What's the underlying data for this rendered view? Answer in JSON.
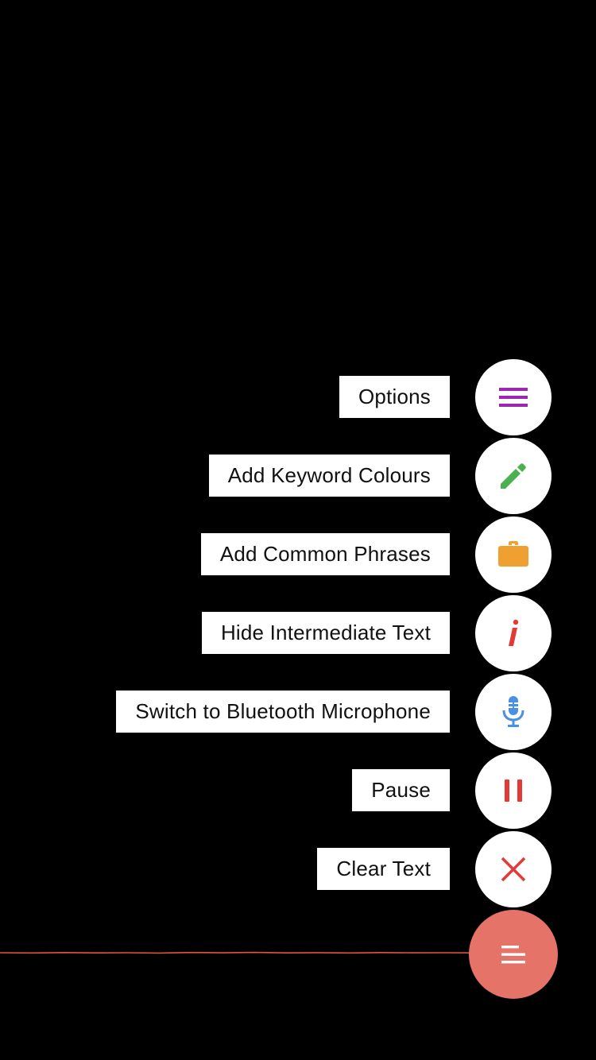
{
  "colors": {
    "background": "#000000",
    "label_bg": "#ffffff",
    "fab_bg": "#ffffff",
    "main_fab": "#e57368",
    "waveform": "#e0533f",
    "options_icon": "#9c27b0",
    "keyword_icon": "#4caf50",
    "phrases_icon": "#f0a030",
    "intermediate_icon": "#e53935",
    "mic_icon": "#4a90e2",
    "pause_icon": "#e53935",
    "clear_icon": "#e53935"
  },
  "menu": {
    "items": [
      {
        "label": "Options",
        "icon": "menu-lines-icon"
      },
      {
        "label": "Add Keyword Colours",
        "icon": "pencil-icon"
      },
      {
        "label": "Add Common Phrases",
        "icon": "briefcase-icon"
      },
      {
        "label": "Hide Intermediate Text",
        "icon": "italic-i-icon"
      },
      {
        "label": "Switch to Bluetooth Microphone",
        "icon": "microphone-icon"
      },
      {
        "label": "Pause",
        "icon": "pause-icon"
      },
      {
        "label": "Clear Text",
        "icon": "close-icon"
      }
    ]
  },
  "main_fab": {
    "icon": "menu-close-icon"
  }
}
